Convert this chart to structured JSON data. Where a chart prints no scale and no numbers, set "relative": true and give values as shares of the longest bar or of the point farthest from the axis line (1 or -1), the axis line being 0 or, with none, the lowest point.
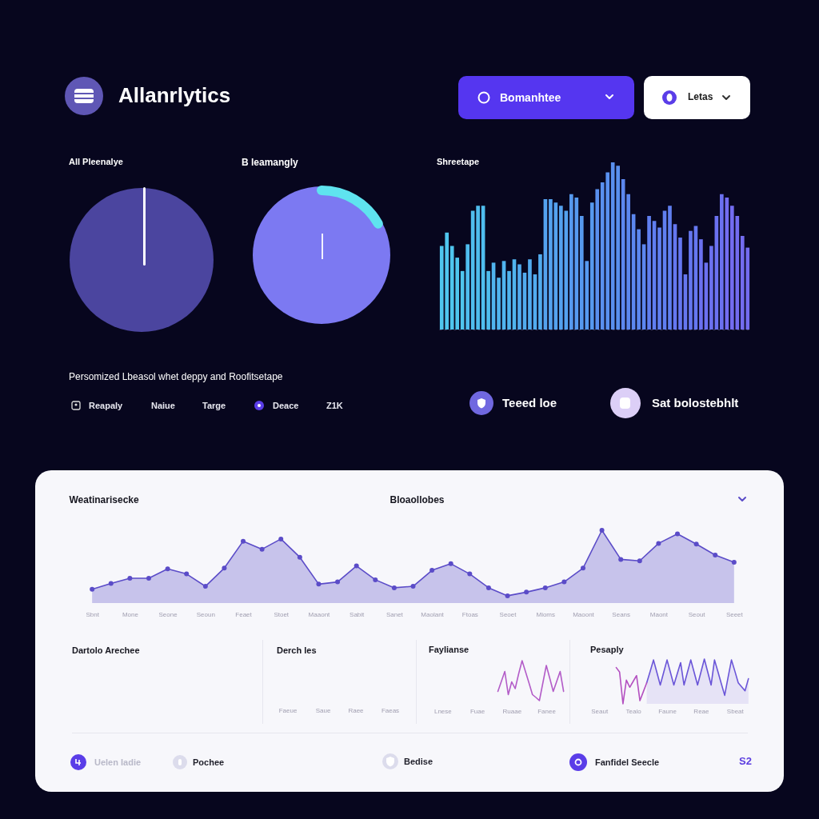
{
  "chart_data": [
    {
      "type": "other",
      "title": "Allanrlytics",
      "annotations": [
        "Bomanhtee",
        "Letas"
      ]
    },
    {
      "type": "pie",
      "title": "All Pleenalye",
      "categories": [
        null
      ],
      "values": [
        100
      ],
      "colors": [
        "#4b459f"
      ]
    },
    {
      "type": "pie",
      "title": "B leamangly",
      "categories": [
        null
      ],
      "values": [
        100
      ],
      "colors": [
        "#7c79f2"
      ]
    },
    {
      "type": "bar",
      "title": "Shreetape",
      "relative": true,
      "categories": [
        null,
        null,
        null,
        null,
        null,
        null,
        null,
        null,
        null,
        null,
        null,
        null,
        null,
        null,
        null,
        null,
        null,
        null,
        null,
        null,
        null,
        null,
        null,
        null,
        null,
        null,
        null,
        null,
        null,
        null,
        null,
        null,
        null,
        null,
        null,
        null,
        null,
        null,
        null,
        null,
        null,
        null,
        null,
        null,
        null,
        null,
        null,
        null,
        null,
        null,
        null,
        null,
        null,
        null,
        null,
        null,
        null,
        null,
        null,
        null
      ],
      "values": [
        0.5,
        0.58,
        0.5,
        0.43,
        0.35,
        0.51,
        0.71,
        0.74,
        0.74,
        0.35,
        0.4,
        0.31,
        0.41,
        0.35,
        0.42,
        0.39,
        0.34,
        0.42,
        0.33,
        0.45,
        0.78,
        0.78,
        0.76,
        0.74,
        0.71,
        0.81,
        0.79,
        0.68,
        0.41,
        0.76,
        0.84,
        0.88,
        0.94,
        1.0,
        0.98,
        0.9,
        0.81,
        0.69,
        0.6,
        0.51,
        0.68,
        0.65,
        0.61,
        0.71,
        0.74,
        0.63,
        0.55,
        0.33,
        0.59,
        0.62,
        0.54,
        0.4,
        0.5,
        0.68,
        0.81,
        0.79,
        0.74,
        0.68,
        0.56,
        0.49
      ],
      "colors": [
        "#4fc6ee",
        "#4fc6ee",
        "#4fc6ee",
        "#4fc6ee",
        "#4fc6ee",
        "#4fbdee",
        "#4fbdee",
        "#4fbdee",
        "#4fbdee",
        "#4fbdee",
        "#50b4ee",
        "#50b4ee",
        "#50b4ee",
        "#50b4ee",
        "#50b4ee",
        "#52abee",
        "#52abee",
        "#52abee",
        "#52abee",
        "#52abee",
        "#54a2ef",
        "#54a2ef",
        "#54a2ef",
        "#54a2ef",
        "#54a2ef",
        "#5699ef",
        "#5699ef",
        "#5699ef",
        "#5699ef",
        "#5699ef",
        "#5990ef",
        "#5990ef",
        "#5990ef",
        "#5990ef",
        "#5990ef",
        "#5c87ef",
        "#5c87ef",
        "#5c87ef",
        "#5c87ef",
        "#5c87ef",
        "#607ff0",
        "#607ff0",
        "#607ff0",
        "#607ff0",
        "#607ff0",
        "#6577f0",
        "#6577f0",
        "#6577f0",
        "#6577f0",
        "#6577f0",
        "#6b71f0",
        "#6b71f0",
        "#6b71f0",
        "#6b71f0",
        "#6b71f0",
        "#736cf0",
        "#736cf0",
        "#736cf0",
        "#736cf0",
        "#736cf0"
      ]
    },
    {
      "type": "other",
      "title": "Persomized Lbeasol whet deppy and Roofitsetape",
      "annotations": [
        "Reapaly",
        "Naiue",
        "Targe",
        "Deace",
        "Z1K",
        "Teeed loe",
        "Sat bolostebhlt"
      ]
    },
    {
      "type": "area",
      "title": "Weatinarisecke",
      "subtitle": "Bloaollobes",
      "relative": true,
      "marker": "circle",
      "categories": [
        "Sbnt",
        null,
        "Mone",
        null,
        "Seone",
        null,
        "Seoun",
        null,
        "Feaet",
        null,
        "Stoet",
        null,
        "Maaont",
        null,
        "Sabit",
        null,
        "Sanet",
        null,
        "Maolant",
        null,
        "Ftoas",
        null,
        "Seoet",
        null,
        "Mioms",
        null,
        "Maoont",
        null,
        "Seans",
        null,
        "Maont",
        null,
        "Seout",
        null,
        "Seeet"
      ],
      "series": [
        {
          "color": "#5b4cc8",
          "values": [
            0.19,
            0.27,
            0.34,
            0.34,
            0.47,
            0.4,
            0.23,
            0.48,
            0.85,
            0.74,
            0.88,
            0.63,
            0.26,
            0.29,
            0.51,
            0.32,
            0.21,
            0.23,
            0.45,
            0.54,
            0.4,
            0.21,
            0.1,
            0.15,
            0.21,
            0.29,
            0.48,
            1.0,
            0.6,
            0.58,
            0.82,
            0.95,
            0.81,
            0.66,
            0.56
          ]
        }
      ]
    },
    {
      "type": "other",
      "title": "Dartolo Arechee"
    },
    {
      "type": "other",
      "title": "Derch les",
      "annotations": [
        "Faeue",
        "Saue",
        "Raee",
        "Faeas"
      ]
    },
    {
      "type": "line",
      "title": "Faylianse",
      "relative": true,
      "categories": [
        "Lnese",
        null,
        null,
        null,
        null,
        null,
        null,
        null,
        null,
        null,
        "Fuae",
        null,
        null,
        null,
        null,
        null,
        null,
        null,
        null,
        null,
        "Ruaae",
        null,
        null,
        null,
        null,
        null,
        null,
        null,
        null,
        null,
        "Fanee",
        null,
        null,
        null,
        null,
        null
      ],
      "series": [
        {
          "color": "#b35cc8",
          "values": [
            null,
            null,
            null,
            null,
            null,
            null,
            null,
            null,
            null,
            null,
            null,
            null,
            null,
            null,
            null,
            null,
            0.23,
            0.48,
            0.73,
            0.15,
            0.47,
            0.3,
            0.67,
            1.0,
            0.72,
            0.44,
            0.15,
            0.08,
            0,
            0.44,
            0.88,
            0.56,
            0.23,
            0.48,
            0.73,
            0.23
          ]
        }
      ]
    },
    {
      "type": "line",
      "title": "Pesaply",
      "relative": true,
      "categories": [
        "Seaut",
        null,
        null,
        null,
        null,
        null,
        null,
        null,
        null,
        null,
        "Tealo",
        null,
        null,
        null,
        null,
        null,
        null,
        null,
        null,
        null,
        "Faune",
        null,
        null,
        null,
        null,
        null,
        null,
        null,
        null,
        null,
        "Reae",
        null,
        null,
        null,
        null,
        null,
        null,
        null,
        null,
        null,
        "Sbeat",
        null,
        null,
        null,
        null
      ],
      "series": [
        {
          "type": "area",
          "color": "#6a55d8",
          "values": [
            null,
            null,
            null,
            null,
            null,
            null,
            null,
            null,
            null,
            null,
            null,
            null,
            null,
            null,
            0.47,
            0.72,
            0.98,
            0.7,
            0.42,
            0.7,
            0.98,
            0.7,
            0.42,
            0.67,
            0.92,
            0.42,
            0.7,
            0.98,
            0.7,
            0.42,
            0.71,
            1.0,
            0.71,
            0.42,
            0.98,
            0.72,
            0.45,
            0.19,
            0.59,
            0.98,
            0.73,
            0.47,
            0.38,
            0.29,
            0.56
          ]
        },
        {
          "color": "#b34fc0",
          "values": [
            null,
            null,
            null,
            null,
            null,
            0.81,
            0.71,
            0,
            0.53,
            0.37,
            0.5,
            0.63,
            0.07,
            0.27,
            0.47,
            null,
            null,
            null,
            null,
            null,
            null,
            null,
            null,
            null,
            null,
            null,
            null,
            null,
            null,
            null,
            null,
            null,
            null,
            null,
            null,
            null,
            null,
            null,
            null,
            null,
            null,
            null,
            null,
            null,
            null
          ]
        }
      ]
    },
    {
      "type": "other",
      "annotations": [
        "Uelen Iadie",
        "Pochee",
        "Bedise",
        "Fanfidel Seecle",
        "S2"
      ]
    }
  ]
}
